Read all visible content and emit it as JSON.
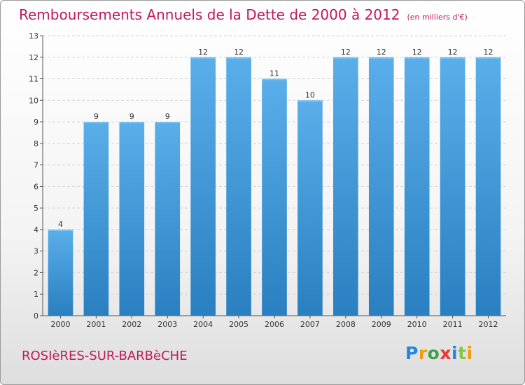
{
  "header": {
    "title": "Remboursements Annuels de la Dette de 2000 à 2012",
    "unit": "(en milliers d'€)"
  },
  "footer": {
    "commune": "ROSIèRES-SUR-BARBèCHE",
    "logo_letters": [
      "P",
      "r",
      "o",
      "x",
      "i",
      "t",
      "i"
    ]
  },
  "chart_data": {
    "type": "bar",
    "title": "Remboursements Annuels de la Dette de 2000 à 2012",
    "unit": "(en milliers d'€)",
    "categories": [
      "2000",
      "2001",
      "2002",
      "2003",
      "2004",
      "2005",
      "2006",
      "2007",
      "2008",
      "2009",
      "2010",
      "2011",
      "2012"
    ],
    "values": [
      4,
      9,
      9,
      9,
      12,
      12,
      11,
      10,
      12,
      12,
      12,
      12,
      12
    ],
    "ylim": [
      0,
      13
    ],
    "yticks": [
      0,
      1,
      2,
      3,
      4,
      5,
      6,
      7,
      8,
      9,
      10,
      11,
      12,
      13
    ],
    "grid": true,
    "bar_color": "#3d95d8"
  }
}
